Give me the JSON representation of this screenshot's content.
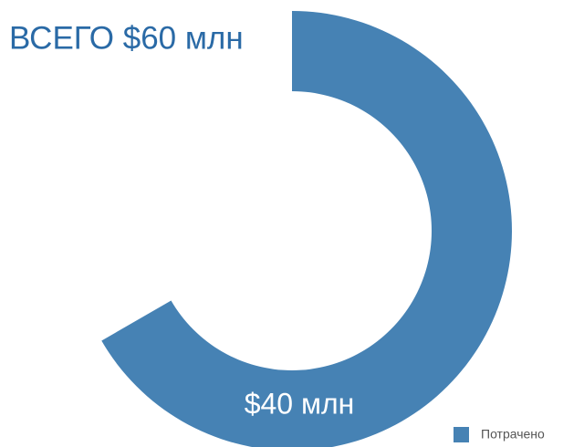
{
  "chart_data": {
    "type": "donut",
    "title": "ВСЕГО $60 млн",
    "total": {
      "value": 60,
      "label": "ВСЕГО $60 млн"
    },
    "series": [
      {
        "name": "Потрачено",
        "color": "#4682b4",
        "values": [
          40
        ],
        "value_labels": [
          "$40 млн"
        ]
      }
    ],
    "legend": "bottom-right"
  }
}
